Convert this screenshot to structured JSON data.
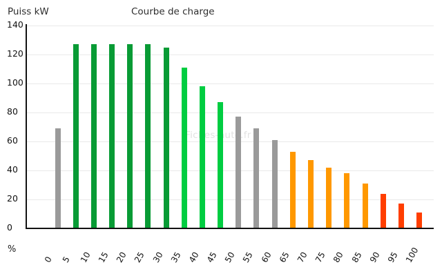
{
  "header": {
    "title": "Courbe de charge",
    "y_axis_title": "Puiss kW"
  },
  "axes": {
    "x_label": "%",
    "y_ticks": [
      0,
      20,
      40,
      60,
      80,
      100,
      120,
      140
    ],
    "x_tick_labels": [
      "0",
      "5",
      "10",
      "15",
      "20",
      "25",
      "30",
      "35",
      "40",
      "45",
      "50",
      "55",
      "60",
      "65",
      "70",
      "75",
      "80",
      "85",
      "90",
      "95",
      "100"
    ]
  },
  "watermark": "Fiches-auto.fr",
  "palette": {
    "gray": "#9a9a9a",
    "green_dark": "#089b35",
    "green_bright": "#00cd41",
    "orange": "#ff9800",
    "red": "#ff3e00",
    "gridline": "#e9e9e9",
    "axis": "#111111"
  },
  "chart_data": {
    "type": "bar",
    "title": "Courbe de charge",
    "xlabel": "%",
    "ylabel": "Puiss kW",
    "ylim": [
      0,
      140
    ],
    "grid": "horizontal",
    "legend": "none",
    "categories": [
      0,
      5,
      10,
      15,
      20,
      25,
      30,
      35,
      40,
      45,
      50,
      55,
      60,
      65,
      70,
      75,
      80,
      85,
      90,
      95,
      100
    ],
    "values": [
      69,
      127,
      127,
      127,
      127,
      127,
      125,
      111,
      98,
      87,
      77,
      69,
      61,
      53,
      47,
      42,
      38,
      31,
      24,
      17,
      11
    ],
    "colors": [
      "gray",
      "green_dark",
      "green_dark",
      "green_dark",
      "green_dark",
      "green_dark",
      "green_dark",
      "green_bright",
      "green_bright",
      "green_bright",
      "gray",
      "gray",
      "gray",
      "orange",
      "orange",
      "orange",
      "orange",
      "orange",
      "red",
      "red",
      "red"
    ]
  }
}
